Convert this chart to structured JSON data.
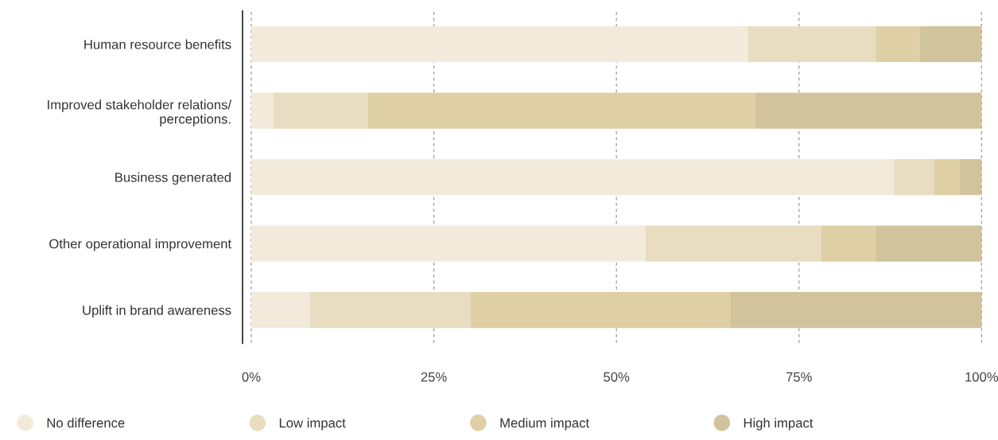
{
  "chart_data": {
    "type": "bar",
    "orientation": "horizontal",
    "stacked": true,
    "categories": [
      "Human resource benefits",
      "Improved stakeholder relations/\nperceptions.",
      "Business generated",
      "Other operational improvement",
      "Uplift in brand awareness"
    ],
    "series": [
      {
        "name": "No difference",
        "color": "#f2ebdc",
        "values": [
          68,
          3,
          88,
          54,
          8
        ]
      },
      {
        "name": "Low impact",
        "color": "#e8ddc0",
        "values": [
          17.5,
          13,
          5.5,
          24,
          22
        ]
      },
      {
        "name": "Medium impact",
        "color": "#dfcfa4",
        "values": [
          6,
          53,
          3.5,
          7.5,
          35.5
        ]
      },
      {
        "name": "High impact",
        "color": "#d1c39c",
        "values": [
          8.5,
          31,
          3,
          14.5,
          34.5
        ]
      }
    ],
    "xlim": [
      -1.2,
      100.2
    ],
    "xticks": [
      {
        "value": 0,
        "label": "0%"
      },
      {
        "value": 25,
        "label": "25%"
      },
      {
        "value": 50,
        "label": "50%"
      },
      {
        "value": 75,
        "label": "75%"
      },
      {
        "value": 100,
        "label": "100%"
      }
    ],
    "grid": "x",
    "legend": "bottom left",
    "marker": "circle"
  }
}
